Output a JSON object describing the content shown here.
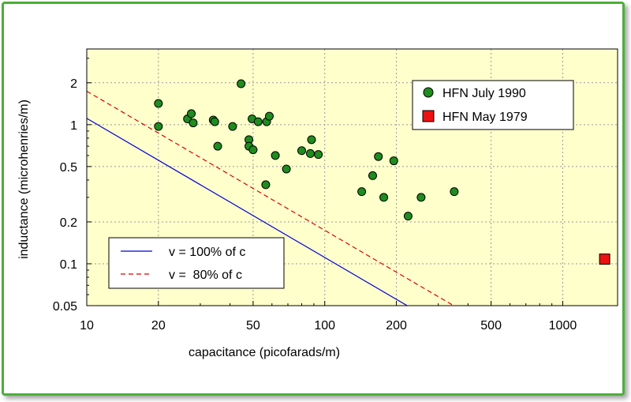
{
  "chart_data": {
    "type": "scatter",
    "x_scale": "log",
    "y_scale": "log",
    "xlabel": "capacitance (picofarads/m)",
    "ylabel": "inductance (microhenries/m)",
    "xlim": [
      10,
      1700
    ],
    "ylim": [
      0.05,
      3.5
    ],
    "x_ticks": [
      {
        "value": 10,
        "label": "10"
      },
      {
        "value": 20,
        "label": "20"
      },
      {
        "value": 50,
        "label": "50"
      },
      {
        "value": 100,
        "label": "100"
      },
      {
        "value": 200,
        "label": "200"
      },
      {
        "value": 500,
        "label": "500"
      },
      {
        "value": 1000,
        "label": "1000"
      }
    ],
    "y_ticks": [
      {
        "value": 0.05,
        "label": "0.05"
      },
      {
        "value": 0.1,
        "label": "0.1"
      },
      {
        "value": 0.2,
        "label": "0.2"
      },
      {
        "value": 0.5,
        "label": "0.5"
      },
      {
        "value": 1,
        "label": "1"
      },
      {
        "value": 2,
        "label": "2"
      }
    ],
    "grid": true,
    "colors": {
      "plot_background": "#ffffcc",
      "frame": "#4caf3a",
      "grid": "#999999",
      "series_1990": "#1e8c1e",
      "series_1979": "#ee1111",
      "line_100": "#0000dd",
      "line_80": "#dd0000"
    },
    "series": [
      {
        "name": "HFN July 1990",
        "marker": "circle",
        "points": [
          [
            20,
            1.42
          ],
          [
            20,
            0.97
          ],
          [
            26.5,
            1.1
          ],
          [
            27.5,
            1.2
          ],
          [
            28,
            1.03
          ],
          [
            34,
            1.08
          ],
          [
            34.5,
            1.05
          ],
          [
            35.5,
            0.7
          ],
          [
            41,
            0.97
          ],
          [
            44.5,
            1.97
          ],
          [
            48,
            0.78
          ],
          [
            48,
            0.7
          ],
          [
            49.5,
            1.1
          ],
          [
            50,
            0.66
          ],
          [
            52.5,
            1.05
          ],
          [
            56.5,
            0.37
          ],
          [
            57,
            1.05
          ],
          [
            58.5,
            1.15
          ],
          [
            62,
            0.6
          ],
          [
            69,
            0.48
          ],
          [
            80,
            0.65
          ],
          [
            87,
            0.62
          ],
          [
            88,
            0.78
          ],
          [
            94,
            0.61
          ],
          [
            143,
            0.33
          ],
          [
            159,
            0.43
          ],
          [
            168,
            0.59
          ],
          [
            177,
            0.3
          ],
          [
            195,
            0.55
          ],
          [
            224,
            0.22
          ],
          [
            254,
            0.3
          ],
          [
            350,
            0.33
          ]
        ]
      },
      {
        "name": "HFN May 1979",
        "marker": "square",
        "points": [
          [
            1500,
            0.108
          ]
        ]
      }
    ],
    "lines": [
      {
        "name": "v = 100% of c",
        "style": "solid",
        "k": 11.1
      },
      {
        "name": "v =  80% of c",
        "style": "dashed",
        "k": 17.4
      }
    ],
    "legends": {
      "points_legend": "top-right",
      "lines_legend": "bottom-left"
    }
  }
}
